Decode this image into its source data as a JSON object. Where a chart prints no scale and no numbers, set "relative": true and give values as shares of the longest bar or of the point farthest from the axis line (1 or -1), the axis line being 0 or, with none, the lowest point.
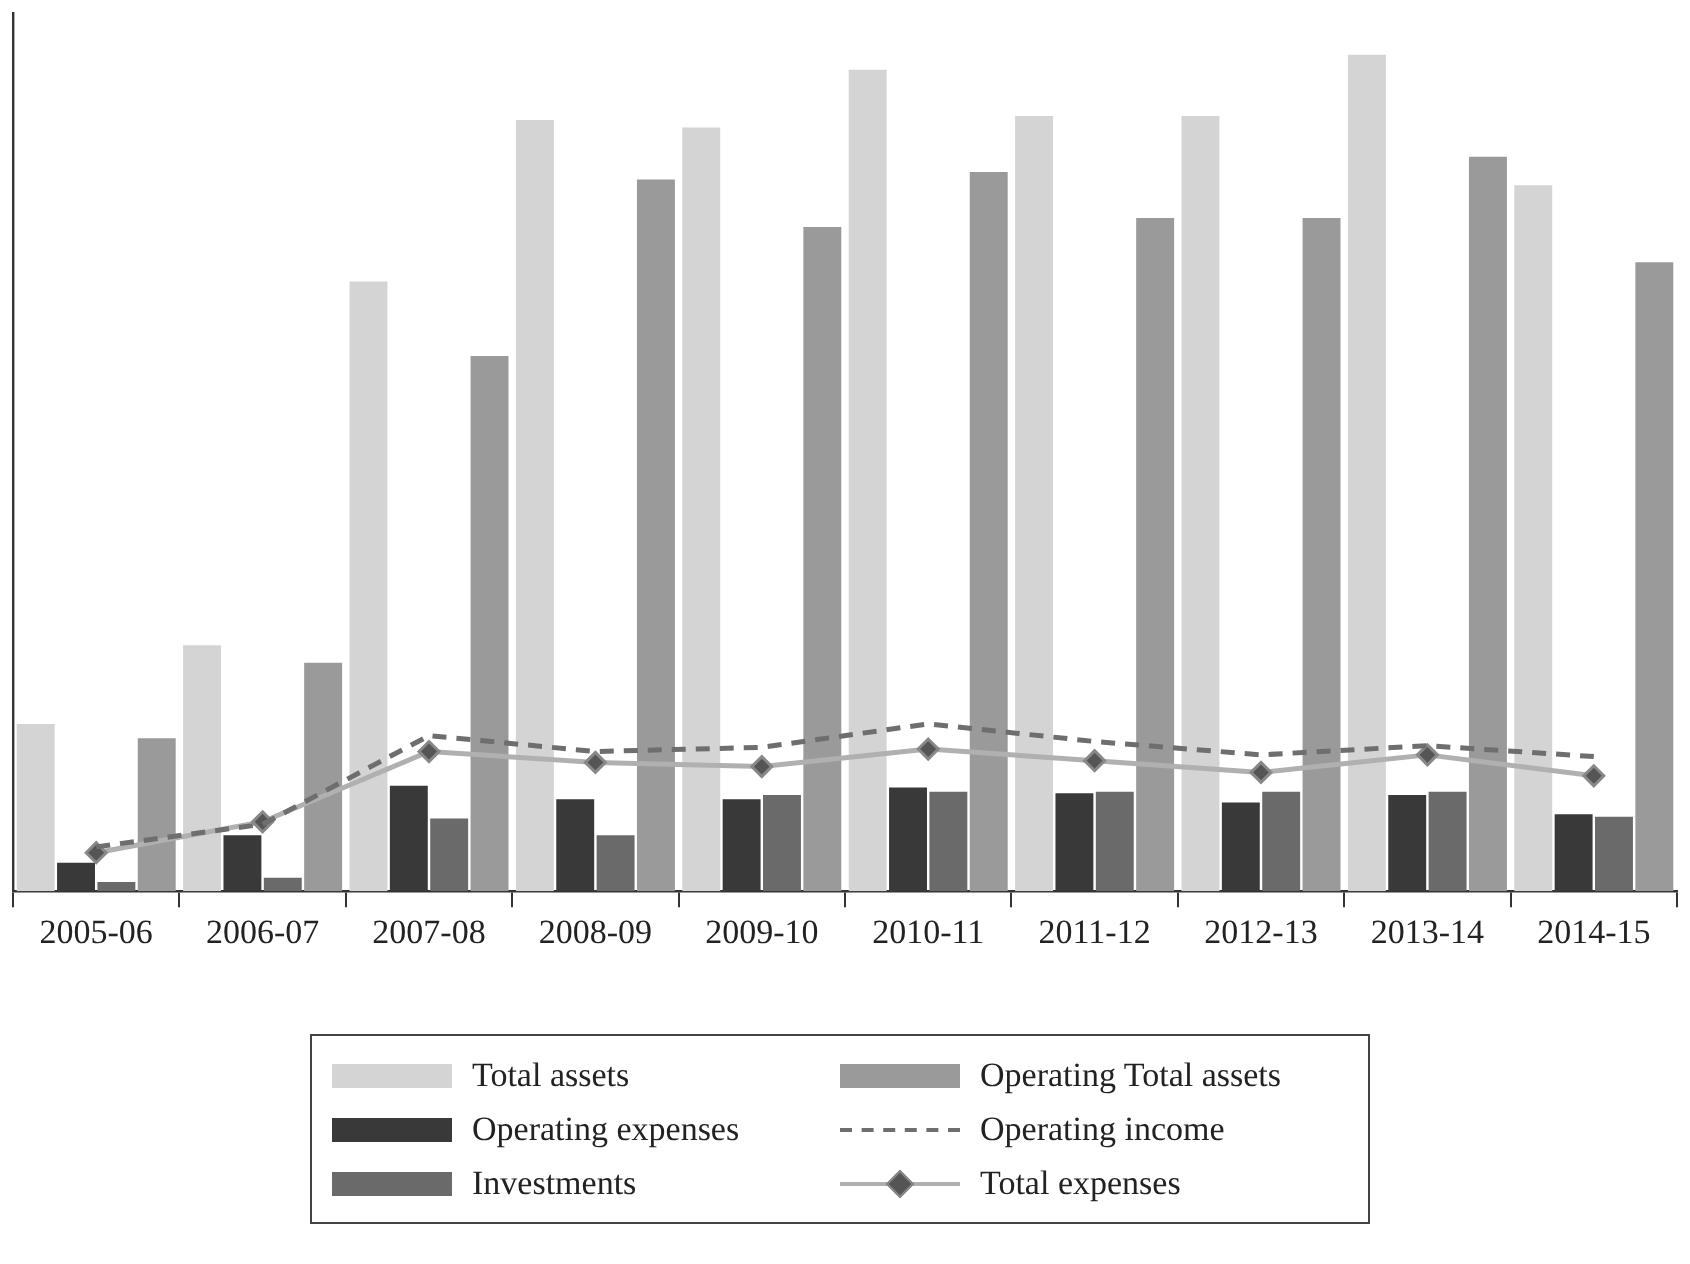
{
  "chart_data": {
    "type": "bar",
    "relative": true,
    "legend": "bottom",
    "categories": [
      "2005-06",
      "2006-07",
      "2007-08",
      "2008-09",
      "2009-10",
      "2010-11",
      "2011-12",
      "2012-13",
      "2013-14",
      "2014-15"
    ],
    "series": [
      {
        "name": "Total assets",
        "color": "#d4d4d4",
        "values": [
          0.2,
          0.294,
          0.729,
          0.922,
          0.913,
          0.982,
          0.927,
          0.927,
          1,
          0.844
        ]
      },
      {
        "name": "Operating expenses",
        "color": "#393939",
        "values": [
          0.034,
          0.067,
          0.126,
          0.11,
          0.11,
          0.124,
          0.117,
          0.106,
          0.115,
          0.092
        ]
      },
      {
        "name": "Investments",
        "color": "#6a6a6a",
        "values": [
          0.011,
          0.016,
          0.087,
          0.067,
          0.115,
          0.119,
          0.119,
          0.119,
          0.119,
          0.089
        ]
      },
      {
        "name": "Operating Total assets",
        "color": "#9a9a9a",
        "values": [
          0.183,
          0.273,
          0.64,
          0.851,
          0.794,
          0.86,
          0.805,
          0.805,
          0.878,
          0.752
        ]
      },
      {
        "name": "Operating income",
        "type": "line",
        "color": "#6e6e6e",
        "line_style": "dashed",
        "marker": "none",
        "values": [
          0.053,
          0.08,
          0.186,
          0.167,
          0.172,
          0.2,
          0.179,
          0.163,
          0.174,
          0.161
        ]
      },
      {
        "name": "Total expenses",
        "type": "line",
        "color": "#b0b0b0",
        "line_style": "solid",
        "marker": "diamond",
        "values": [
          0.046,
          0.083,
          0.167,
          0.154,
          0.149,
          0.17,
          0.156,
          0.142,
          0.163,
          0.138
        ]
      }
    ]
  }
}
